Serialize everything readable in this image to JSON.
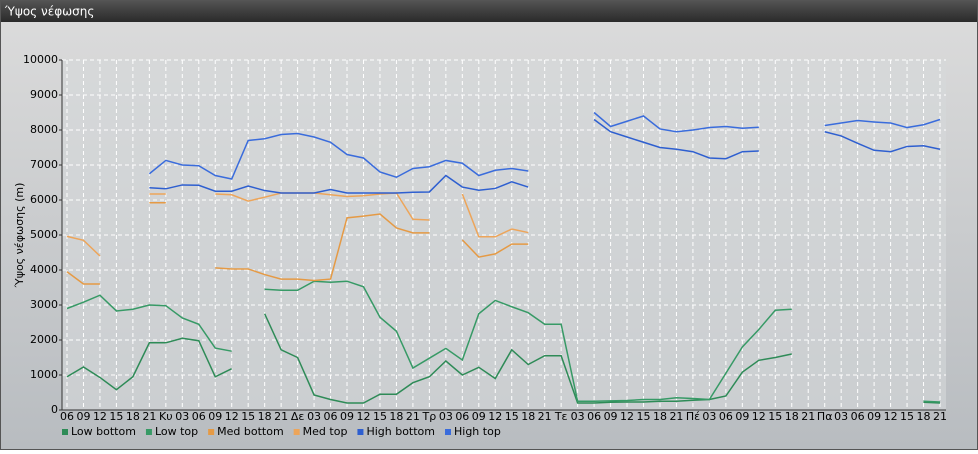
{
  "window": {
    "title": "Ύψος νέφωσης"
  },
  "chart_data": {
    "type": "line",
    "y_label": "Ύψος νέφωσης (m)",
    "categories": [
      "06",
      "09",
      "12",
      "15",
      "18",
      "21",
      "Κυ",
      "03",
      "06",
      "09",
      "12",
      "15",
      "18",
      "21",
      "Δε",
      "03",
      "06",
      "09",
      "12",
      "15",
      "18",
      "21",
      "Τρ",
      "03",
      "06",
      "09",
      "12",
      "15",
      "18",
      "21",
      "Τε",
      "03",
      "06",
      "09",
      "12",
      "15",
      "18",
      "21",
      "Πέ",
      "03",
      "06",
      "09",
      "12",
      "15",
      "18",
      "21",
      "Πα",
      "03",
      "06",
      "09",
      "12",
      "15",
      "18",
      "21"
    ],
    "ylim": [
      0,
      10000
    ],
    "yticks": [
      0,
      1000,
      2000,
      3000,
      4000,
      5000,
      6000,
      7000,
      8000,
      9000,
      10000
    ],
    "grid": true,
    "series": [
      {
        "name": "Low bottom",
        "color": "#2e8b57",
        "values": [
          950,
          1230,
          930,
          580,
          950,
          1920,
          1920,
          2050,
          1980,
          950,
          1180,
          null,
          2750,
          1720,
          1500,
          430,
          300,
          200,
          200,
          450,
          450,
          780,
          950,
          1400,
          1000,
          1220,
          900,
          1720,
          1300,
          1550,
          1550,
          200,
          200,
          220,
          230,
          230,
          250,
          250,
          280,
          300,
          400,
          1080,
          1420,
          1500,
          1600,
          null,
          null,
          null,
          null,
          null,
          null,
          null,
          220,
          200
        ]
      },
      {
        "name": "Low top",
        "color": "#379a66",
        "values": [
          2900,
          3080,
          3280,
          2830,
          2880,
          3000,
          2980,
          2630,
          2450,
          1770,
          1680,
          null,
          3450,
          3420,
          3420,
          3680,
          3650,
          3680,
          3520,
          2650,
          2250,
          1200,
          1480,
          1760,
          1430,
          2750,
          3130,
          2950,
          2780,
          2450,
          2450,
          250,
          250,
          260,
          270,
          300,
          300,
          350,
          330,
          300,
          1050,
          1800,
          2300,
          2850,
          2880,
          null,
          null,
          null,
          null,
          null,
          null,
          null,
          250,
          230
        ]
      },
      {
        "name": "Med bottom",
        "color": "#e59a45",
        "values": [
          3950,
          3600,
          3600,
          null,
          null,
          5920,
          5920,
          null,
          null,
          4060,
          4030,
          4030,
          3870,
          3740,
          3740,
          3700,
          3740,
          5490,
          5540,
          5600,
          5200,
          5060,
          5060,
          null,
          4860,
          4370,
          4460,
          4740,
          4740,
          null,
          null,
          null,
          null,
          null,
          null,
          null,
          null,
          null,
          null,
          null,
          null,
          null,
          null,
          null,
          null,
          null,
          null,
          null,
          null,
          null,
          null,
          null,
          null,
          null
        ]
      },
      {
        "name": "Med top",
        "color": "#eda55a",
        "values": [
          4960,
          4850,
          4400,
          null,
          null,
          6170,
          6170,
          null,
          null,
          6170,
          6150,
          5970,
          6080,
          6200,
          6200,
          6200,
          6150,
          6100,
          6120,
          6170,
          6200,
          5450,
          5430,
          null,
          6170,
          4950,
          4950,
          5170,
          5070,
          null,
          null,
          null,
          null,
          null,
          null,
          null,
          null,
          null,
          null,
          null,
          null,
          null,
          null,
          null,
          null,
          null,
          null,
          null,
          null,
          null,
          null,
          null,
          null,
          null
        ]
      },
      {
        "name": "High bottom",
        "color": "#2e5fd0",
        "values": [
          null,
          null,
          null,
          null,
          null,
          6350,
          6320,
          6430,
          6420,
          6250,
          6250,
          6400,
          6270,
          6200,
          6200,
          6200,
          6300,
          6200,
          6200,
          6200,
          6200,
          6220,
          6230,
          6700,
          6370,
          6280,
          6330,
          6520,
          6370,
          null,
          null,
          null,
          8300,
          7950,
          7800,
          7650,
          7500,
          7450,
          7380,
          7200,
          7180,
          7380,
          7400,
          null,
          null,
          null,
          7950,
          7830,
          7620,
          7420,
          7380,
          7530,
          7550,
          7450
        ]
      },
      {
        "name": "High top",
        "color": "#3a6cdc",
        "values": [
          null,
          null,
          null,
          null,
          null,
          6750,
          7130,
          7000,
          6980,
          6700,
          6600,
          7700,
          7750,
          7870,
          7900,
          7800,
          7650,
          7300,
          7200,
          6800,
          6650,
          6900,
          6950,
          7130,
          7050,
          6700,
          6850,
          6900,
          6830,
          null,
          null,
          null,
          8500,
          8100,
          8250,
          8400,
          8030,
          7950,
          8000,
          8070,
          8100,
          8050,
          8080,
          null,
          null,
          null,
          8130,
          8200,
          8270,
          8230,
          8200,
          8070,
          8150,
          8300
        ]
      }
    ]
  }
}
